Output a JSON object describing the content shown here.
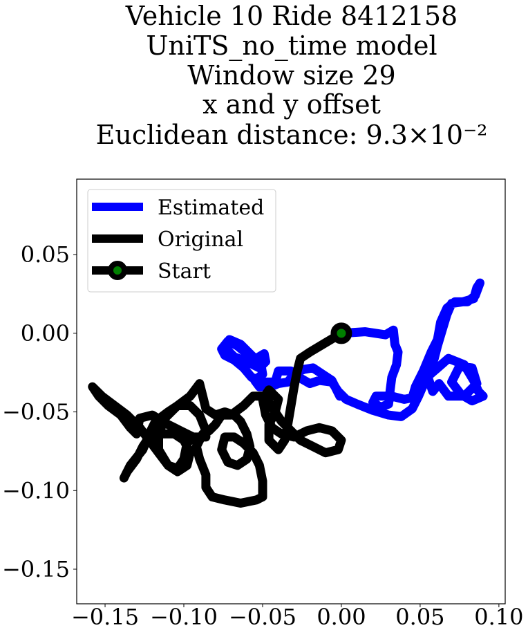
{
  "chart_data": {
    "type": "line",
    "title_lines": [
      "Vehicle 10 Ride 8412158",
      "UniTS_no_time model",
      "Window size 29",
      "x and y offset",
      "Euclidean distance: 9.3×10⁻²"
    ],
    "xlabel": "",
    "ylabel": "",
    "xlim": [
      -0.168,
      0.104
    ],
    "ylim": [
      -0.172,
      0.098
    ],
    "xticks": [
      -0.15,
      -0.1,
      -0.05,
      0.0,
      0.05,
      0.1
    ],
    "xtick_labels": [
      "−0.15",
      "−0.10",
      "−0.05",
      "0.00",
      "0.05",
      "0.10"
    ],
    "yticks": [
      0.05,
      0.0,
      -0.05,
      -0.1,
      -0.15
    ],
    "ytick_labels": [
      "0.05",
      "0.00",
      "−0.05",
      "−0.10",
      "−0.15"
    ],
    "grid": false,
    "legend": {
      "placement": "top-left",
      "entries": [
        {
          "label": "Estimated",
          "color": "#0000ff",
          "marker": "none"
        },
        {
          "label": "Original",
          "color": "#000000",
          "marker": "none"
        },
        {
          "label": "Start",
          "color": "#000000",
          "marker": "circle",
          "marker_face": "#008000"
        }
      ]
    },
    "series": [
      {
        "name": "Estimated",
        "color": "#0000ff",
        "points": [
          [
            0.0,
            0.0
          ],
          [
            0.015,
            0.001
          ],
          [
            0.028,
            -0.001
          ],
          [
            0.033,
            0.002
          ],
          [
            0.034,
            -0.007
          ],
          [
            0.036,
            -0.012
          ],
          [
            0.035,
            -0.02
          ],
          [
            0.032,
            -0.028
          ],
          [
            0.031,
            -0.036
          ],
          [
            0.03,
            -0.045
          ],
          [
            0.025,
            -0.047
          ],
          [
            0.02,
            -0.044
          ],
          [
            0.022,
            -0.04
          ],
          [
            0.032,
            -0.04
          ],
          [
            0.04,
            -0.042
          ],
          [
            0.045,
            -0.041
          ],
          [
            0.047,
            -0.034
          ],
          [
            0.052,
            -0.024
          ],
          [
            0.057,
            -0.012
          ],
          [
            0.061,
            -0.004
          ],
          [
            0.063,
            0.007
          ],
          [
            0.067,
            0.016
          ],
          [
            0.072,
            0.02
          ],
          [
            0.08,
            0.02
          ],
          [
            0.085,
            0.024
          ],
          [
            0.088,
            0.032
          ],
          [
            0.086,
            0.029
          ],
          [
            0.084,
            0.022
          ],
          [
            0.077,
            0.02
          ],
          [
            0.07,
            0.019
          ],
          [
            0.067,
            0.012
          ],
          [
            0.064,
            0.002
          ],
          [
            0.061,
            -0.008
          ],
          [
            0.059,
            -0.016
          ],
          [
            0.056,
            -0.024
          ],
          [
            0.053,
            -0.029
          ],
          [
            0.06,
            -0.023
          ],
          [
            0.068,
            -0.016
          ],
          [
            0.078,
            -0.02
          ],
          [
            0.084,
            -0.03
          ],
          [
            0.087,
            -0.037
          ],
          [
            0.09,
            -0.04
          ],
          [
            0.083,
            -0.043
          ],
          [
            0.076,
            -0.039
          ],
          [
            0.07,
            -0.031
          ],
          [
            0.075,
            -0.021
          ],
          [
            0.083,
            -0.022
          ],
          [
            0.086,
            -0.032
          ],
          [
            0.078,
            -0.04
          ],
          [
            0.068,
            -0.04
          ],
          [
            0.062,
            -0.032
          ],
          [
            0.058,
            -0.037
          ],
          [
            0.055,
            -0.028
          ],
          [
            0.052,
            -0.033
          ],
          [
            0.049,
            -0.04
          ],
          [
            0.045,
            -0.048
          ],
          [
            0.038,
            -0.053
          ],
          [
            0.03,
            -0.052
          ],
          [
            0.02,
            -0.049
          ],
          [
            0.01,
            -0.045
          ],
          [
            0.003,
            -0.042
          ],
          [
            -0.002,
            -0.037
          ],
          [
            -0.006,
            -0.031
          ],
          [
            -0.014,
            -0.03
          ],
          [
            -0.02,
            -0.032
          ],
          [
            -0.027,
            -0.028
          ],
          [
            -0.032,
            -0.024
          ],
          [
            -0.04,
            -0.024
          ],
          [
            -0.042,
            -0.031
          ],
          [
            -0.049,
            -0.031
          ],
          [
            -0.057,
            -0.028
          ],
          [
            -0.062,
            -0.022
          ],
          [
            -0.068,
            -0.017
          ],
          [
            -0.074,
            -0.014
          ],
          [
            -0.076,
            -0.01
          ],
          [
            -0.072,
            -0.005
          ],
          [
            -0.066,
            -0.008
          ],
          [
            -0.06,
            -0.013
          ],
          [
            -0.054,
            -0.016
          ],
          [
            -0.049,
            -0.013
          ],
          [
            -0.048,
            -0.018
          ],
          [
            -0.052,
            -0.022
          ],
          [
            -0.06,
            -0.018
          ],
          [
            -0.068,
            -0.015
          ],
          [
            -0.073,
            -0.01
          ],
          [
            -0.071,
            -0.004
          ],
          [
            -0.064,
            -0.007
          ],
          [
            -0.056,
            -0.015
          ],
          [
            -0.051,
            -0.02
          ],
          [
            -0.05,
            -0.026
          ],
          [
            -0.055,
            -0.03
          ],
          [
            -0.052,
            -0.034
          ],
          [
            -0.045,
            -0.034
          ],
          [
            -0.04,
            -0.032
          ],
          [
            -0.034,
            -0.031
          ],
          [
            -0.03,
            -0.026
          ],
          [
            -0.024,
            -0.023
          ],
          [
            -0.018,
            -0.022
          ],
          [
            -0.012,
            -0.026
          ],
          [
            -0.006,
            -0.03
          ],
          [
            -0.003,
            -0.036
          ],
          [
            -0.001,
            -0.04
          ]
        ]
      },
      {
        "name": "Original",
        "color": "#000000",
        "points": [
          [
            0.0,
            0.0
          ],
          [
            -0.01,
            -0.006
          ],
          [
            -0.02,
            -0.012
          ],
          [
            -0.026,
            -0.016
          ],
          [
            -0.028,
            -0.024
          ],
          [
            -0.03,
            -0.034
          ],
          [
            -0.032,
            -0.046
          ],
          [
            -0.034,
            -0.058
          ],
          [
            -0.036,
            -0.068
          ],
          [
            -0.04,
            -0.074
          ],
          [
            -0.046,
            -0.068
          ],
          [
            -0.046,
            -0.058
          ],
          [
            -0.042,
            -0.05
          ],
          [
            -0.04,
            -0.042
          ],
          [
            -0.046,
            -0.036
          ],
          [
            -0.05,
            -0.042
          ],
          [
            -0.048,
            -0.052
          ],
          [
            -0.044,
            -0.06
          ],
          [
            -0.038,
            -0.064
          ],
          [
            -0.03,
            -0.066
          ],
          [
            -0.022,
            -0.062
          ],
          [
            -0.014,
            -0.06
          ],
          [
            -0.006,
            -0.062
          ],
          [
            0.0,
            -0.068
          ],
          [
            -0.002,
            -0.074
          ],
          [
            -0.01,
            -0.076
          ],
          [
            -0.018,
            -0.072
          ],
          [
            -0.026,
            -0.068
          ],
          [
            -0.032,
            -0.062
          ],
          [
            -0.038,
            -0.056
          ],
          [
            -0.042,
            -0.05
          ],
          [
            -0.046,
            -0.044
          ],
          [
            -0.05,
            -0.04
          ],
          [
            -0.056,
            -0.04
          ],
          [
            -0.062,
            -0.046
          ],
          [
            -0.07,
            -0.052
          ],
          [
            -0.076,
            -0.052
          ],
          [
            -0.08,
            -0.058
          ],
          [
            -0.084,
            -0.062
          ],
          [
            -0.088,
            -0.064
          ],
          [
            -0.092,
            -0.072
          ],
          [
            -0.09,
            -0.08
          ],
          [
            -0.086,
            -0.09
          ],
          [
            -0.086,
            -0.098
          ],
          [
            -0.082,
            -0.104
          ],
          [
            -0.074,
            -0.106
          ],
          [
            -0.064,
            -0.108
          ],
          [
            -0.054,
            -0.106
          ],
          [
            -0.05,
            -0.104
          ],
          [
            -0.05,
            -0.094
          ],
          [
            -0.052,
            -0.084
          ],
          [
            -0.056,
            -0.076
          ],
          [
            -0.062,
            -0.07
          ],
          [
            -0.068,
            -0.066
          ],
          [
            -0.074,
            -0.066
          ],
          [
            -0.076,
            -0.074
          ],
          [
            -0.072,
            -0.082
          ],
          [
            -0.066,
            -0.084
          ],
          [
            -0.06,
            -0.08
          ],
          [
            -0.058,
            -0.072
          ],
          [
            -0.06,
            -0.064
          ],
          [
            -0.064,
            -0.056
          ],
          [
            -0.068,
            -0.052
          ],
          [
            -0.074,
            -0.05
          ],
          [
            -0.08,
            -0.052
          ],
          [
            -0.086,
            -0.048
          ],
          [
            -0.088,
            -0.04
          ],
          [
            -0.09,
            -0.032
          ],
          [
            -0.096,
            -0.04
          ],
          [
            -0.104,
            -0.046
          ],
          [
            -0.112,
            -0.054
          ],
          [
            -0.116,
            -0.064
          ],
          [
            -0.116,
            -0.074
          ],
          [
            -0.11,
            -0.084
          ],
          [
            -0.104,
            -0.088
          ],
          [
            -0.098,
            -0.084
          ],
          [
            -0.096,
            -0.076
          ],
          [
            -0.1,
            -0.068
          ],
          [
            -0.106,
            -0.064
          ],
          [
            -0.114,
            -0.064
          ],
          [
            -0.122,
            -0.066
          ],
          [
            -0.126,
            -0.072
          ],
          [
            -0.13,
            -0.08
          ],
          [
            -0.136,
            -0.088
          ],
          [
            -0.138,
            -0.092
          ],
          [
            -0.134,
            -0.084
          ],
          [
            -0.126,
            -0.074
          ],
          [
            -0.122,
            -0.064
          ],
          [
            -0.118,
            -0.056
          ],
          [
            -0.11,
            -0.05
          ],
          [
            -0.104,
            -0.046
          ],
          [
            -0.096,
            -0.046
          ],
          [
            -0.09,
            -0.052
          ],
          [
            -0.086,
            -0.062
          ],
          [
            -0.086,
            -0.066
          ],
          [
            -0.094,
            -0.066
          ],
          [
            -0.102,
            -0.062
          ],
          [
            -0.11,
            -0.058
          ],
          [
            -0.12,
            -0.052
          ],
          [
            -0.128,
            -0.054
          ],
          [
            -0.13,
            -0.064
          ],
          [
            -0.134,
            -0.06
          ],
          [
            -0.14,
            -0.052
          ],
          [
            -0.148,
            -0.046
          ],
          [
            -0.154,
            -0.04
          ],
          [
            -0.158,
            -0.034
          ],
          [
            -0.152,
            -0.04
          ],
          [
            -0.144,
            -0.046
          ],
          [
            -0.136,
            -0.052
          ],
          [
            -0.128,
            -0.06
          ],
          [
            -0.122,
            -0.068
          ],
          [
            -0.116,
            -0.076
          ],
          [
            -0.11,
            -0.084
          ],
          [
            -0.104,
            -0.086
          ],
          [
            -0.1,
            -0.08
          ],
          [
            -0.098,
            -0.07
          ],
          [
            -0.094,
            -0.066
          ]
        ]
      }
    ],
    "start_point": {
      "name": "Start",
      "x": 0.0,
      "y": 0.0,
      "edge_color": "#000000",
      "face_color": "#008000"
    }
  }
}
